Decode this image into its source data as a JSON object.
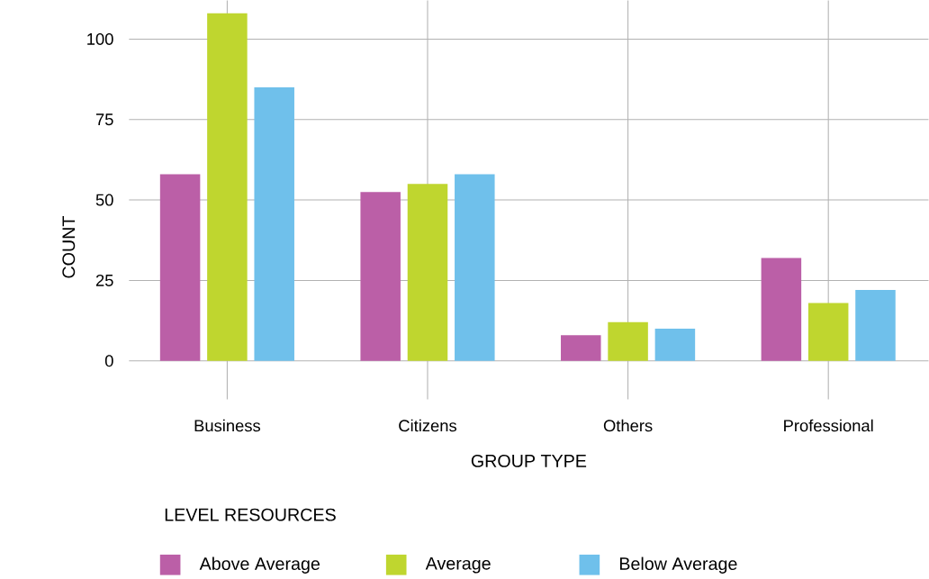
{
  "chart_data": {
    "type": "bar",
    "xlabel": "GROUP TYPE",
    "ylabel": "COUNT",
    "legend_title": "LEVEL RESOURCES",
    "categories": [
      "Business",
      "Citizens",
      "Others",
      "Professional"
    ],
    "series": [
      {
        "name": "Above Average",
        "color": "#bb5fa7",
        "values": [
          58,
          52.5,
          8,
          32
        ]
      },
      {
        "name": "Average",
        "color": "#bfd62f",
        "values": [
          108,
          55,
          12,
          18
        ]
      },
      {
        "name": "Below Average",
        "color": "#6fc0eb",
        "values": [
          85,
          58,
          10,
          22
        ]
      }
    ],
    "ylim": [
      -12,
      112
    ],
    "yticks": [
      0,
      25,
      50,
      75,
      100
    ],
    "grid": true,
    "legend": "bottom"
  }
}
